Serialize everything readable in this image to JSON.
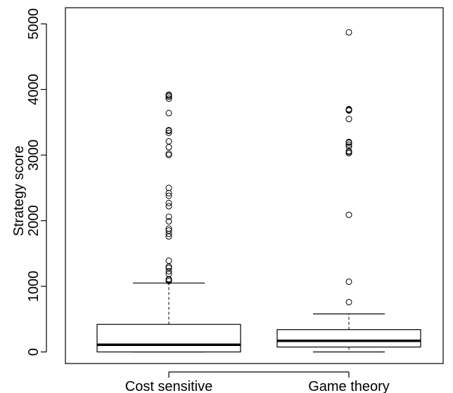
{
  "chart_data": {
    "type": "boxplot",
    "title": "",
    "xlabel": "",
    "ylabel": "Strategy score",
    "ylim": [
      -150,
      5000
    ],
    "yticks": [
      0,
      1000,
      2000,
      3000,
      4000,
      5000
    ],
    "grid": false,
    "categories": [
      "Cost sensitive",
      "Game theory"
    ],
    "boxes": [
      {
        "label": "Cost sensitive",
        "lower_whisker": 0,
        "q1": 0,
        "median": 110,
        "q3": 420,
        "upper_whisker": 1050,
        "outliers": [
          1080,
          1100,
          1110,
          1190,
          1230,
          1280,
          1300,
          1390,
          1760,
          1800,
          1850,
          1880,
          1990,
          2060,
          2220,
          2270,
          2380,
          2420,
          2500,
          3000,
          3020,
          3120,
          3210,
          3340,
          3370,
          3380,
          3640,
          3860,
          3890,
          3910,
          3920
        ]
      },
      {
        "label": "Game theory",
        "lower_whisker": 0,
        "q1": 75,
        "median": 170,
        "q3": 340,
        "upper_whisker": 580,
        "outliers": [
          760,
          1070,
          2090,
          3030,
          3050,
          3060,
          3130,
          3160,
          3190,
          3200,
          3550,
          3680,
          3690,
          3700,
          4870
        ]
      }
    ]
  }
}
